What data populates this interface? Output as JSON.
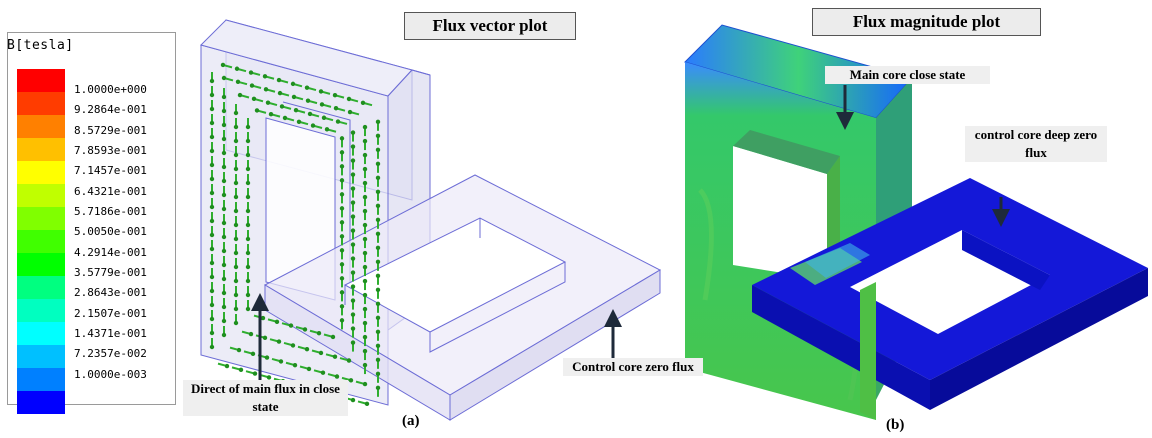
{
  "legend": {
    "title": "B[tesla]",
    "entries": [
      {
        "label": "1.0000e+000",
        "color": "#ff0000"
      },
      {
        "label": "9.2864e-001",
        "color": "#ff3c00"
      },
      {
        "label": "8.5729e-001",
        "color": "#ff8000"
      },
      {
        "label": "7.8593e-001",
        "color": "#ffc000"
      },
      {
        "label": "7.1457e-001",
        "color": "#ffff00"
      },
      {
        "label": "6.4321e-001",
        "color": "#c0ff00"
      },
      {
        "label": "5.7186e-001",
        "color": "#80ff00"
      },
      {
        "label": "5.0050e-001",
        "color": "#40ff00"
      },
      {
        "label": "4.2914e-001",
        "color": "#00ff00"
      },
      {
        "label": "3.5779e-001",
        "color": "#00ff80"
      },
      {
        "label": "2.8643e-001",
        "color": "#00ffc0"
      },
      {
        "label": "2.1507e-001",
        "color": "#00ffff"
      },
      {
        "label": "1.4371e-001",
        "color": "#00c0ff"
      },
      {
        "label": "7.2357e-002",
        "color": "#0080ff"
      },
      {
        "label": "1.0000e-003",
        "color": "#0000ff"
      }
    ]
  },
  "panel_a": {
    "title": "Flux vector plot",
    "note_main_flux": "Direct of main flux in close state",
    "note_control": "Control core zero flux",
    "label": "(a)"
  },
  "panel_b": {
    "title": "Flux magnitude plot",
    "note_main_core": "Main core close state",
    "note_control": "control core deep zero flux",
    "label": "(b)"
  }
}
